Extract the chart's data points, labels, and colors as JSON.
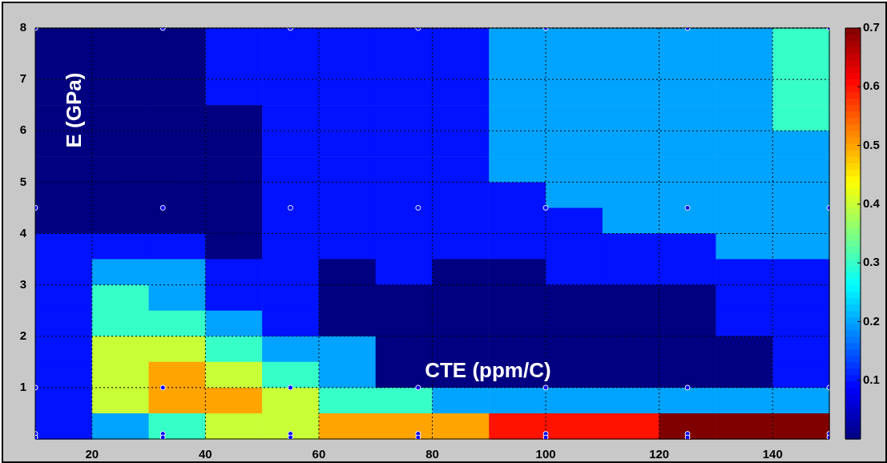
{
  "chart_data": {
    "type": "heatmap",
    "xlabel": "CTE (ppm/C)",
    "ylabel": "E (GPa)",
    "cells": [
      [
        0,
        0,
        0,
        0.1,
        0.1,
        0.1,
        0.1,
        0.1,
        0.2,
        0.2,
        0.2,
        0.2,
        0.2,
        0.3
      ],
      [
        0,
        0,
        0,
        0.1,
        0.1,
        0.1,
        0.1,
        0.1,
        0.2,
        0.2,
        0.2,
        0.2,
        0.2,
        0.3
      ],
      [
        0,
        0,
        0,
        0.1,
        0.1,
        0.1,
        0.1,
        0.1,
        0.2,
        0.2,
        0.2,
        0.2,
        0.2,
        0.3
      ],
      [
        0,
        0,
        0,
        0,
        0.1,
        0.1,
        0.1,
        0.1,
        0.2,
        0.2,
        0.2,
        0.2,
        0.2,
        0.3
      ],
      [
        0,
        0,
        0,
        0,
        0.1,
        0.1,
        0.1,
        0.1,
        0.2,
        0.2,
        0.2,
        0.2,
        0.2,
        0.2
      ],
      [
        0,
        0,
        0,
        0,
        0.1,
        0.1,
        0.1,
        0.1,
        0.2,
        0.2,
        0.2,
        0.2,
        0.2,
        0.2
      ],
      [
        0,
        0,
        0,
        0,
        0.1,
        0.1,
        0.1,
        0.1,
        0.1,
        0.2,
        0.2,
        0.2,
        0.2,
        0.2
      ],
      [
        0,
        0,
        0,
        0,
        0.1,
        0.1,
        0.1,
        0.1,
        0.1,
        0.1,
        0.2,
        0.2,
        0.2,
        0.2
      ],
      [
        0.1,
        0.1,
        0.1,
        0,
        0.1,
        0.1,
        0.1,
        0.1,
        0.1,
        0.1,
        0.1,
        0.1,
        0.2,
        0.2
      ],
      [
        0.1,
        0.2,
        0.2,
        0.1,
        0.1,
        0,
        0.1,
        0,
        0,
        0.1,
        0.1,
        0.1,
        0.1,
        0.1
      ],
      [
        0.1,
        0.3,
        0.2,
        0.1,
        0.1,
        0,
        0,
        0,
        0,
        0,
        0,
        0,
        0.1,
        0.1
      ],
      [
        0.1,
        0.3,
        0.3,
        0.2,
        0.1,
        0,
        0,
        0,
        0,
        0,
        0,
        0,
        0.1,
        0.1
      ],
      [
        0.1,
        0.4,
        0.4,
        0.3,
        0.2,
        0.2,
        0,
        0,
        0,
        0,
        0,
        0,
        0,
        0.1
      ],
      [
        0.1,
        0.4,
        0.5,
        0.4,
        0.3,
        0.2,
        0,
        0,
        0,
        0,
        0,
        0,
        0,
        0.1
      ],
      [
        0.1,
        0.4,
        0.5,
        0.5,
        0.4,
        0.3,
        0.3,
        0.2,
        0.2,
        0.2,
        0.2,
        0.2,
        0.2,
        0.2
      ],
      [
        0.1,
        0.2,
        0.3,
        0.4,
        0.4,
        0.5,
        0.5,
        0.5,
        0.6,
        0.6,
        0.6,
        0.7,
        0.7,
        0.7
      ]
    ],
    "clim": [
      0,
      0.7
    ],
    "cticks": [
      0.1,
      0.2,
      0.3,
      0.4,
      0.5,
      0.6,
      0.7
    ],
    "xlim": [
      10,
      150
    ],
    "ylim": [
      0,
      8
    ],
    "xticks": [
      20,
      40,
      60,
      80,
      100,
      120,
      140
    ],
    "yticks": [
      1,
      2,
      3,
      4,
      5,
      6,
      7,
      8
    ],
    "grid": true,
    "marker": "circle",
    "series": [
      {
        "type": "scatter",
        "color": "#0000ff",
        "x": [
          10,
          32.5,
          55,
          77.5,
          100,
          125,
          150,
          10,
          32.5,
          55,
          77.5,
          100,
          125,
          150,
          10,
          32.5,
          55,
          77.5,
          100,
          125,
          150,
          10,
          32.5,
          55,
          77.5,
          100,
          125,
          150,
          10,
          32.5,
          55,
          77.5,
          100,
          125,
          150
        ],
        "values": [
          8,
          8,
          8,
          8,
          8,
          8,
          8,
          4.5,
          4.5,
          4.5,
          4.5,
          4.5,
          4.5,
          4.5,
          1,
          1,
          1,
          1,
          1,
          1,
          1,
          0.1,
          0.1,
          0.1,
          0.1,
          0.1,
          0.1,
          0.1,
          0.03,
          0.03,
          0.03,
          0.03,
          0.03,
          0.03,
          0.03
        ]
      }
    ]
  }
}
